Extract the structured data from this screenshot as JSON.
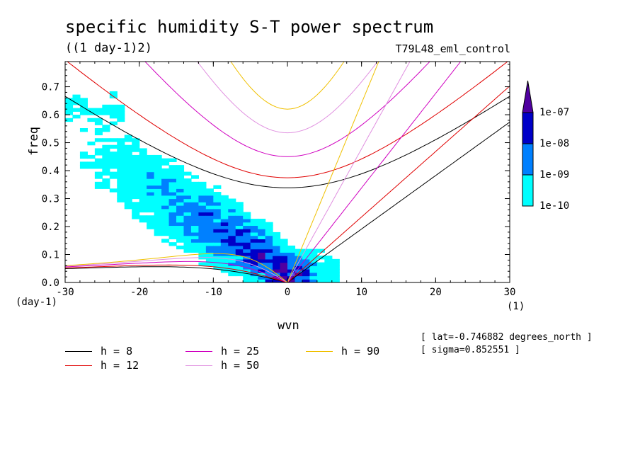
{
  "chart_data": {
    "type": "heatmap",
    "title": "specific humidity S-T power spectrum",
    "units": "((1 day-1)2)",
    "run_label": "T79L48_eml_control",
    "xlabel": "wvn",
    "ylabel": "freq",
    "x_unit": "(1)",
    "y_unit": "(day-1)",
    "xlim": [
      -30,
      30
    ],
    "ylim": [
      0,
      0.79
    ],
    "x_ticks": [
      -30,
      -20,
      -10,
      0,
      10,
      20,
      30
    ],
    "x_tick_labels": [
      "-30",
      "-20",
      "-10",
      "0",
      "10",
      "20",
      "30"
    ],
    "y_ticks": [
      0,
      0.1,
      0.2,
      0.3,
      0.4,
      0.5,
      0.6,
      0.7
    ],
    "y_tick_labels": [
      "0.0",
      "0.1",
      "0.2",
      "0.3",
      "0.4",
      "0.5",
      "0.6",
      "0.7"
    ],
    "colorbar": {
      "levels": [
        "1e-10",
        "1e-09",
        "1e-08",
        "1e-07"
      ],
      "colors": [
        "#00ffff",
        "#0080ff",
        "#0000c8",
        "#5000a0"
      ]
    },
    "dispersion_curves": [
      {
        "h": "8",
        "label": "h =  8",
        "color": "#000000"
      },
      {
        "h": "12",
        "label": "h = 12",
        "color": "#e00000"
      },
      {
        "h": "25",
        "label": "h = 25",
        "color": "#d000c0"
      },
      {
        "h": "50",
        "label": "h = 50",
        "color": "#e090e0"
      },
      {
        "h": "90",
        "label": "h = 90",
        "color": "#f0c000"
      }
    ],
    "info": [
      "[ lat=-0.746882 degrees_north ]",
      "[ sigma=0.852551 ]"
    ]
  }
}
